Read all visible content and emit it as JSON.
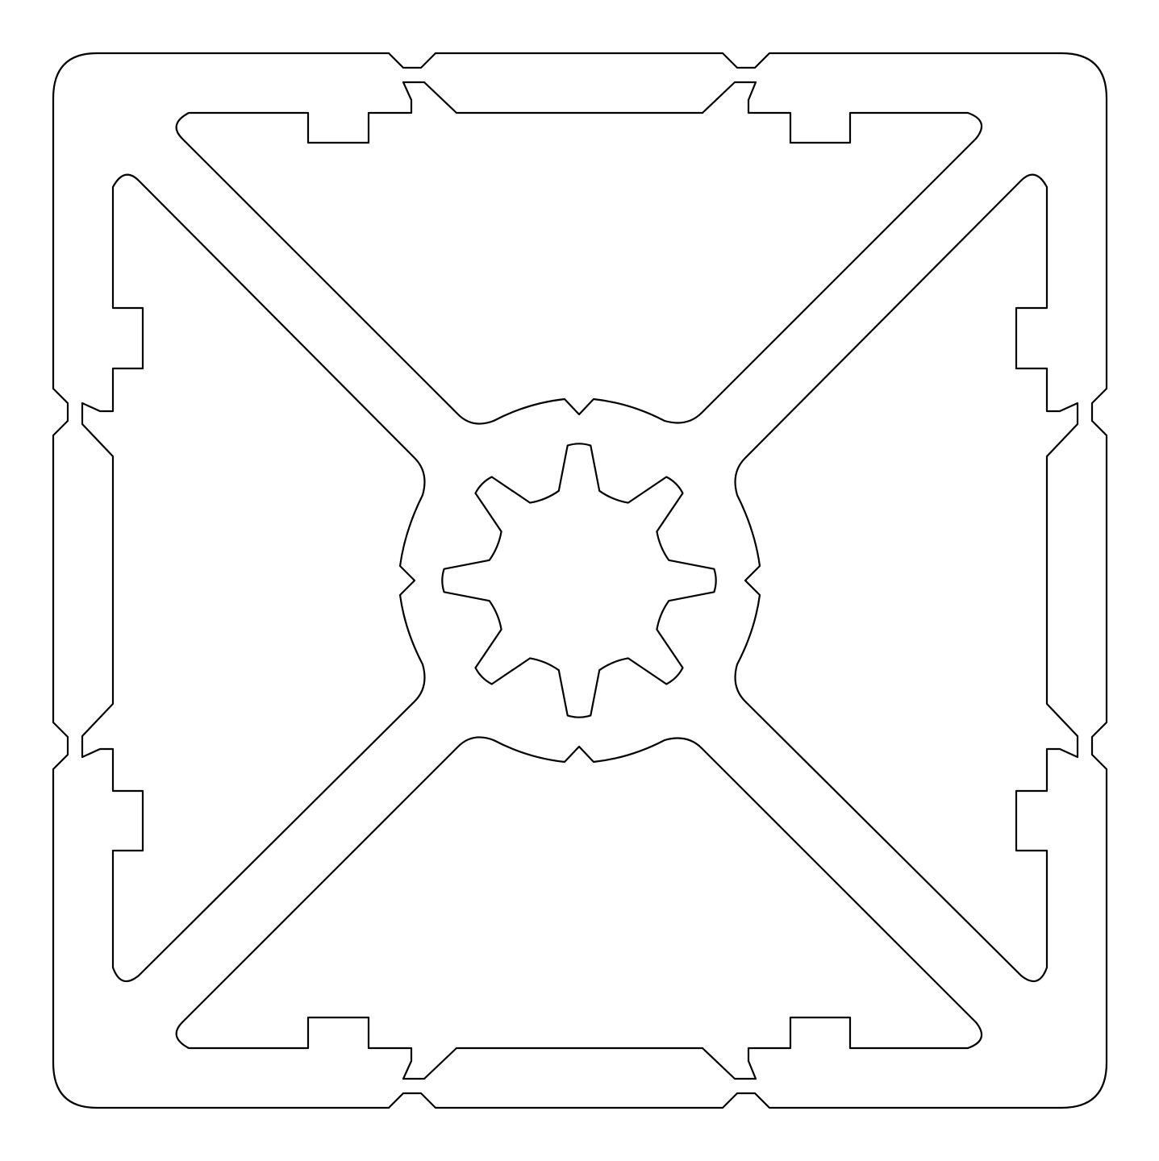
{
  "diagram": {
    "stroke_color": "#000000",
    "background_color": "#ffffff",
    "parts": [
      "outer-frame-outline",
      "top-window-cutout",
      "bottom-window-cutout",
      "left-window-cutout",
      "right-window-cutout",
      "center-hub-outline",
      "center-star-cutout"
    ]
  }
}
